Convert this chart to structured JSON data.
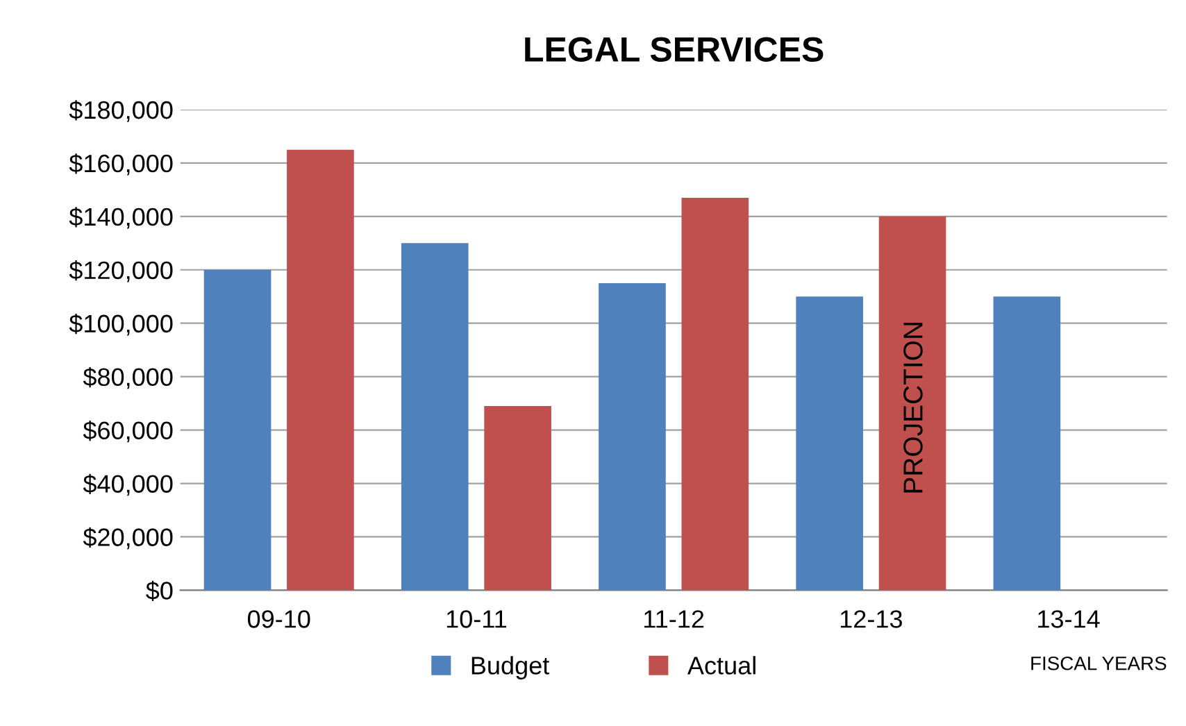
{
  "chart_data": {
    "type": "bar",
    "title": "LEGAL SERVICES",
    "xlabel": "FISCAL YEARS",
    "categories": [
      "09-10",
      "10-11",
      "11-12",
      "12-13",
      "13-14"
    ],
    "series": [
      {
        "name": "Budget",
        "color": "#4f81bd",
        "values": [
          120000,
          130000,
          115000,
          110000,
          110000
        ]
      },
      {
        "name": "Actual",
        "color": "#c0504d",
        "values": [
          165000,
          69000,
          147000,
          140000,
          null
        ]
      }
    ],
    "ylim": [
      0,
      180000
    ],
    "yticks": [
      {
        "value": 0,
        "label": "$0"
      },
      {
        "value": 20000,
        "label": "$20,000"
      },
      {
        "value": 40000,
        "label": "$40,000"
      },
      {
        "value": 60000,
        "label": "$60,000"
      },
      {
        "value": 80000,
        "label": "$80,000"
      },
      {
        "value": 100000,
        "label": "$100,000"
      },
      {
        "value": 120000,
        "label": "$120,000"
      },
      {
        "value": 140000,
        "label": "$140,000"
      },
      {
        "value": 160000,
        "label": "$160,000"
      },
      {
        "value": 180000,
        "label": "$180,000"
      }
    ],
    "annotations": [
      "PROJECTION"
    ],
    "grid": "y",
    "legend": "bottom"
  }
}
